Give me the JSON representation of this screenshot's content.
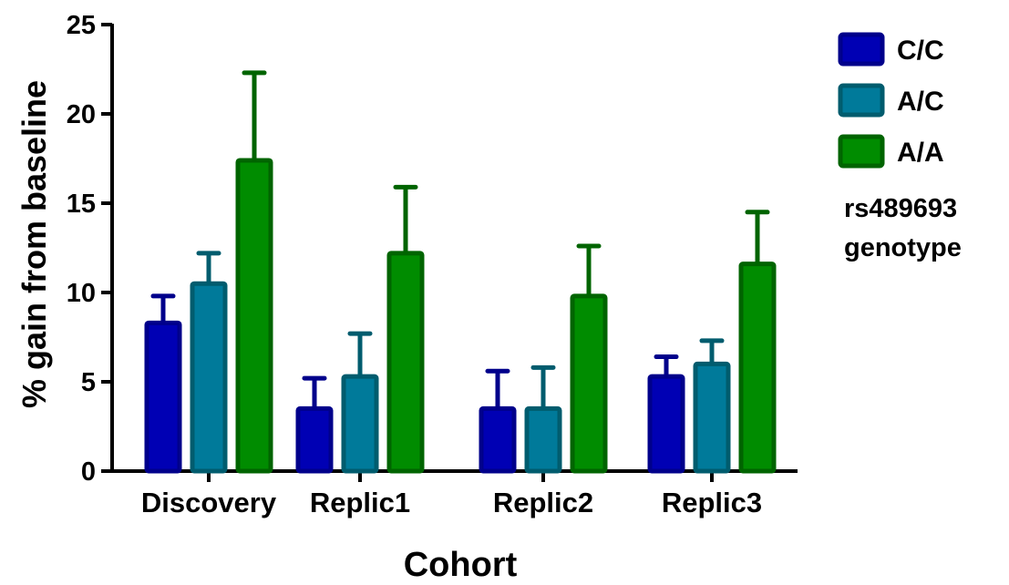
{
  "chart_data": {
    "type": "bar",
    "xlabel": "Cohort",
    "ylabel": "% gain from baseline",
    "ylim": [
      0,
      25
    ],
    "yticks": [
      0,
      5,
      10,
      15,
      20,
      25
    ],
    "categories": [
      "Discovery",
      "Replic1",
      "Replic2",
      "Replic3"
    ],
    "series": [
      {
        "name": "C/C",
        "fill": "#0000b4",
        "stroke": "#00008b",
        "values": [
          8.3,
          3.5,
          3.5,
          5.3
        ],
        "error": [
          1.5,
          1.7,
          2.1,
          1.1
        ]
      },
      {
        "name": "A/C",
        "fill": "#007a9a",
        "stroke": "#005c6e",
        "values": [
          10.5,
          5.3,
          3.5,
          6.0
        ],
        "error": [
          1.7,
          2.4,
          2.3,
          1.3
        ]
      },
      {
        "name": "A/A",
        "fill": "#008c00",
        "stroke": "#006400",
        "values": [
          17.4,
          12.2,
          9.8,
          11.6
        ],
        "error": [
          4.9,
          3.7,
          2.8,
          2.9
        ]
      }
    ],
    "legend_title_lines": [
      "rs489693",
      "genotype"
    ],
    "legend_position": "right",
    "grid": false
  }
}
